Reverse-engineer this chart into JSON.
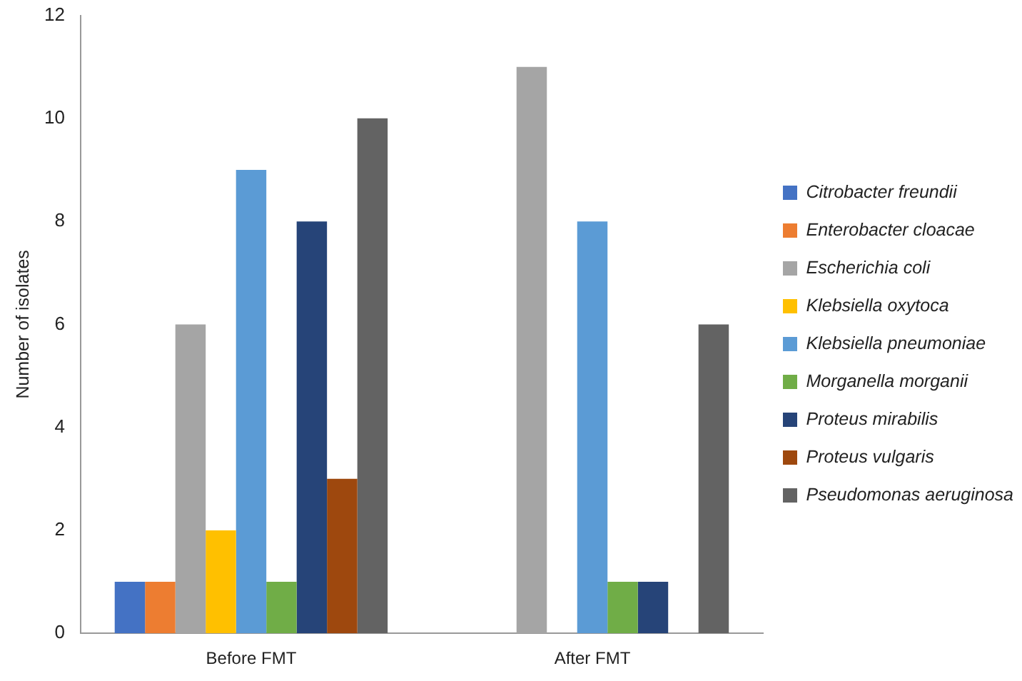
{
  "chart_data": {
    "type": "bar",
    "ylabel": "Number of isolates",
    "categories": [
      "Before FMT",
      "After FMT"
    ],
    "series": [
      {
        "name": "Citrobacter freundii",
        "color": "#4472c4",
        "values": [
          1,
          0
        ]
      },
      {
        "name": "Enterobacter cloacae",
        "color": "#ed7d31",
        "values": [
          1,
          0
        ]
      },
      {
        "name": "Escherichia coli",
        "color": "#a5a5a5",
        "values": [
          6,
          11
        ]
      },
      {
        "name": "Klebsiella oxytoca",
        "color": "#ffc000",
        "values": [
          2,
          0
        ]
      },
      {
        "name": "Klebsiella pneumoniae",
        "color": "#5b9bd5",
        "values": [
          9,
          8
        ]
      },
      {
        "name": "Morganella morganii",
        "color": "#70ad47",
        "values": [
          1,
          1
        ]
      },
      {
        "name": "Proteus mirabilis",
        "color": "#264478",
        "values": [
          8,
          1
        ]
      },
      {
        "name": "Proteus vulgaris",
        "color": "#9e480e",
        "values": [
          3,
          0
        ]
      },
      {
        "name": "Pseudomonas aeruginosa",
        "color": "#636363",
        "values": [
          10,
          6
        ]
      }
    ],
    "ylim": [
      0,
      12
    ],
    "yticks": [
      0,
      2,
      4,
      6,
      8,
      10,
      12
    ],
    "grid": false,
    "legend": "right"
  }
}
